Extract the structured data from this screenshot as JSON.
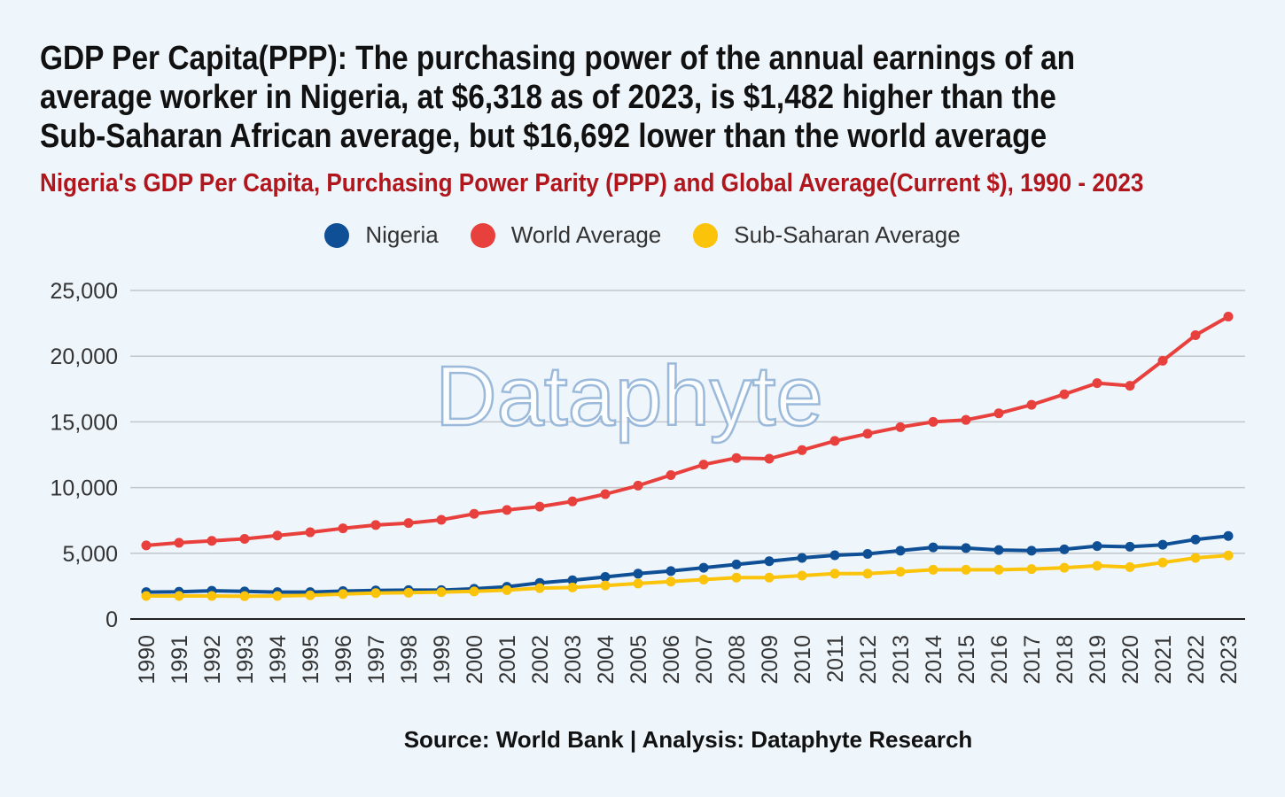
{
  "title": "GDP Per Capita(PPP): The purchasing power of the annual earnings of an average worker in Nigeria, at $6,318 as of 2023, is $1,482 higher than the Sub-Saharan African average, but $16,692 lower than the world average",
  "source": "Source: World Bank | Analysis: Dataphyte Research",
  "watermark": "Dataphyte",
  "chart_data": {
    "type": "line",
    "title": "Nigeria's GDP Per Capita, Purchasing Power Parity (PPP) and Global Average(Current $), 1990 - 2023",
    "xlabel": "",
    "ylabel": "",
    "ylim": [
      0,
      25000
    ],
    "yticks": [
      {
        "value": 0,
        "label": "0"
      },
      {
        "value": 5000,
        "label": "5,000"
      },
      {
        "value": 10000,
        "label": "10,000"
      },
      {
        "value": 15000,
        "label": "15,000"
      },
      {
        "value": 20000,
        "label": "20,000"
      },
      {
        "value": 25000,
        "label": "25,000"
      }
    ],
    "grid": true,
    "legend_position": "top",
    "x": [
      "1990",
      "1991",
      "1992",
      "1993",
      "1994",
      "1995",
      "1996",
      "1997",
      "1998",
      "1999",
      "2000",
      "2001",
      "2002",
      "2003",
      "2004",
      "2005",
      "2006",
      "2007",
      "2008",
      "2009",
      "2010",
      "2011",
      "2012",
      "2013",
      "2014",
      "2015",
      "2016",
      "2017",
      "2018",
      "2019",
      "2020",
      "2021",
      "2022",
      "2023"
    ],
    "series": [
      {
        "name": "Nigeria",
        "color": "#0f4f96",
        "values": [
          2050,
          2070,
          2150,
          2100,
          2050,
          2050,
          2120,
          2170,
          2200,
          2200,
          2300,
          2450,
          2750,
          2950,
          3200,
          3450,
          3650,
          3900,
          4150,
          4400,
          4650,
          4850,
          4950,
          5200,
          5450,
          5400,
          5250,
          5200,
          5300,
          5550,
          5500,
          5650,
          6050,
          6318
        ]
      },
      {
        "name": "World Average",
        "color": "#e8403c",
        "values": [
          5600,
          5800,
          5950,
          6100,
          6350,
          6600,
          6900,
          7150,
          7300,
          7550,
          8000,
          8300,
          8550,
          8950,
          9500,
          10150,
          10950,
          11750,
          12250,
          12200,
          12850,
          13550,
          14100,
          14600,
          15000,
          15150,
          15650,
          16300,
          17100,
          17950,
          17750,
          19650,
          21600,
          23010
        ]
      },
      {
        "name": "Sub-Saharan Average",
        "color": "#fbc30a",
        "values": [
          1750,
          1750,
          1750,
          1740,
          1750,
          1800,
          1900,
          1970,
          2000,
          2050,
          2100,
          2200,
          2350,
          2400,
          2550,
          2700,
          2850,
          3000,
          3150,
          3150,
          3300,
          3450,
          3450,
          3600,
          3750,
          3750,
          3750,
          3800,
          3900,
          4050,
          3950,
          4300,
          4650,
          4836
        ]
      }
    ]
  }
}
